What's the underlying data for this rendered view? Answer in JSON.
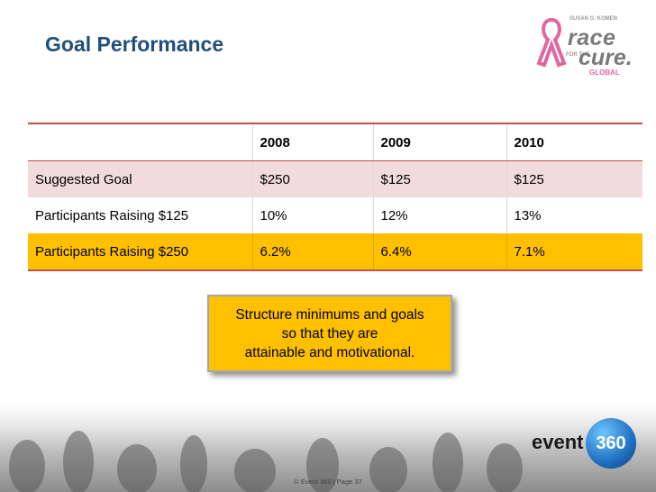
{
  "slide": {
    "title": "Goal Performance"
  },
  "logo": {
    "komen_top": "SUSAN G. KOMEN",
    "race": "race",
    "for_the": "FOR THE",
    "cure": "cure.",
    "global": "GLOBAL"
  },
  "table": {
    "headers": [
      "",
      "2008",
      "2009",
      "2010"
    ],
    "rows": [
      [
        "Suggested Goal",
        "$250",
        "$125",
        "$125"
      ],
      [
        "Participants Raising $125",
        "10%",
        "12%",
        "13%"
      ],
      [
        "Participants Raising $250",
        "6.2%",
        "6.4%",
        "7.1%"
      ]
    ]
  },
  "callout": {
    "text": "Structure minimums and goals\nso that they are\nattainable and motivational."
  },
  "footer": {
    "text": "© Event 360  |  Page 37"
  },
  "brand": {
    "event": "event",
    "num": "360"
  },
  "colors": {
    "title": "#1f4f7a",
    "rule": "#c0504d",
    "row_pink": "#f2dcdb",
    "row_gold": "#ffc000",
    "callout": "#ffc000"
  }
}
